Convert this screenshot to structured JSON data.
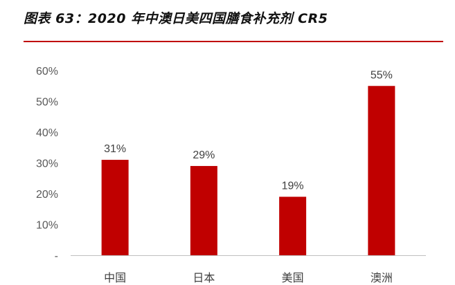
{
  "figure": {
    "title": "图表 63：2020 年中澳日美四国膳食补充剂 CR5"
  },
  "colors": {
    "bar": "#c00000",
    "rule": "#c00000",
    "axis": "#bfbfbf"
  },
  "chart_data": {
    "type": "bar",
    "categories": [
      "中国",
      "日本",
      "美国",
      "澳洲"
    ],
    "values": [
      31,
      29,
      19,
      55
    ],
    "value_labels": [
      "31%",
      "29%",
      "19%",
      "55%"
    ],
    "yticks": [
      "-",
      "10%",
      "20%",
      "30%",
      "40%",
      "50%",
      "60%"
    ],
    "ylim": [
      0,
      60
    ],
    "unit": "%",
    "title": "",
    "xlabel": "",
    "ylabel": "",
    "grid": false,
    "legend": "none"
  }
}
